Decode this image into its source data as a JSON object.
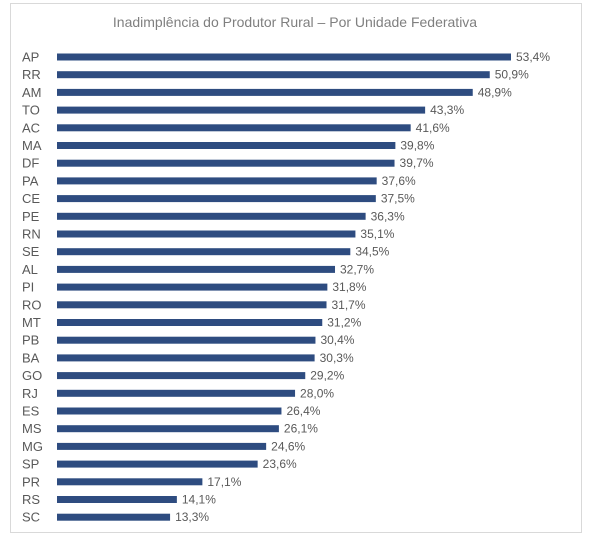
{
  "chart_data": {
    "type": "bar",
    "orientation": "horizontal",
    "title": "Inadimplência do Produtor Rural – Por Unidade Federativa",
    "categories": [
      "AP",
      "RR",
      "AM",
      "TO",
      "AC",
      "MA",
      "DF",
      "PA",
      "CE",
      "PE",
      "RN",
      "SE",
      "AL",
      "PI",
      "RO",
      "MT",
      "PB",
      "BA",
      "GO",
      "RJ",
      "ES",
      "MS",
      "MG",
      "SP",
      "PR",
      "RS",
      "SC"
    ],
    "values": [
      53.4,
      50.9,
      48.9,
      43.3,
      41.6,
      39.8,
      39.7,
      37.6,
      37.5,
      36.3,
      35.1,
      34.5,
      32.7,
      31.8,
      31.7,
      31.2,
      30.4,
      30.3,
      29.2,
      28.0,
      26.4,
      26.1,
      24.6,
      23.6,
      17.1,
      14.1,
      13.3
    ],
    "value_labels": [
      "53,4%",
      "50,9%",
      "48,9%",
      "43,3%",
      "41,6%",
      "39,8%",
      "39,7%",
      "37,6%",
      "37,5%",
      "36,3%",
      "35,1%",
      "34,5%",
      "32,7%",
      "31,8%",
      "31,7%",
      "31,2%",
      "30,4%",
      "30,3%",
      "29,2%",
      "28,0%",
      "26,4%",
      "26,1%",
      "24,6%",
      "23,6%",
      "17,1%",
      "14,1%",
      "13,3%"
    ],
    "xlim": [
      0,
      53.4
    ],
    "grid": false,
    "legend": "none",
    "bar_color": "#2e4c80"
  }
}
